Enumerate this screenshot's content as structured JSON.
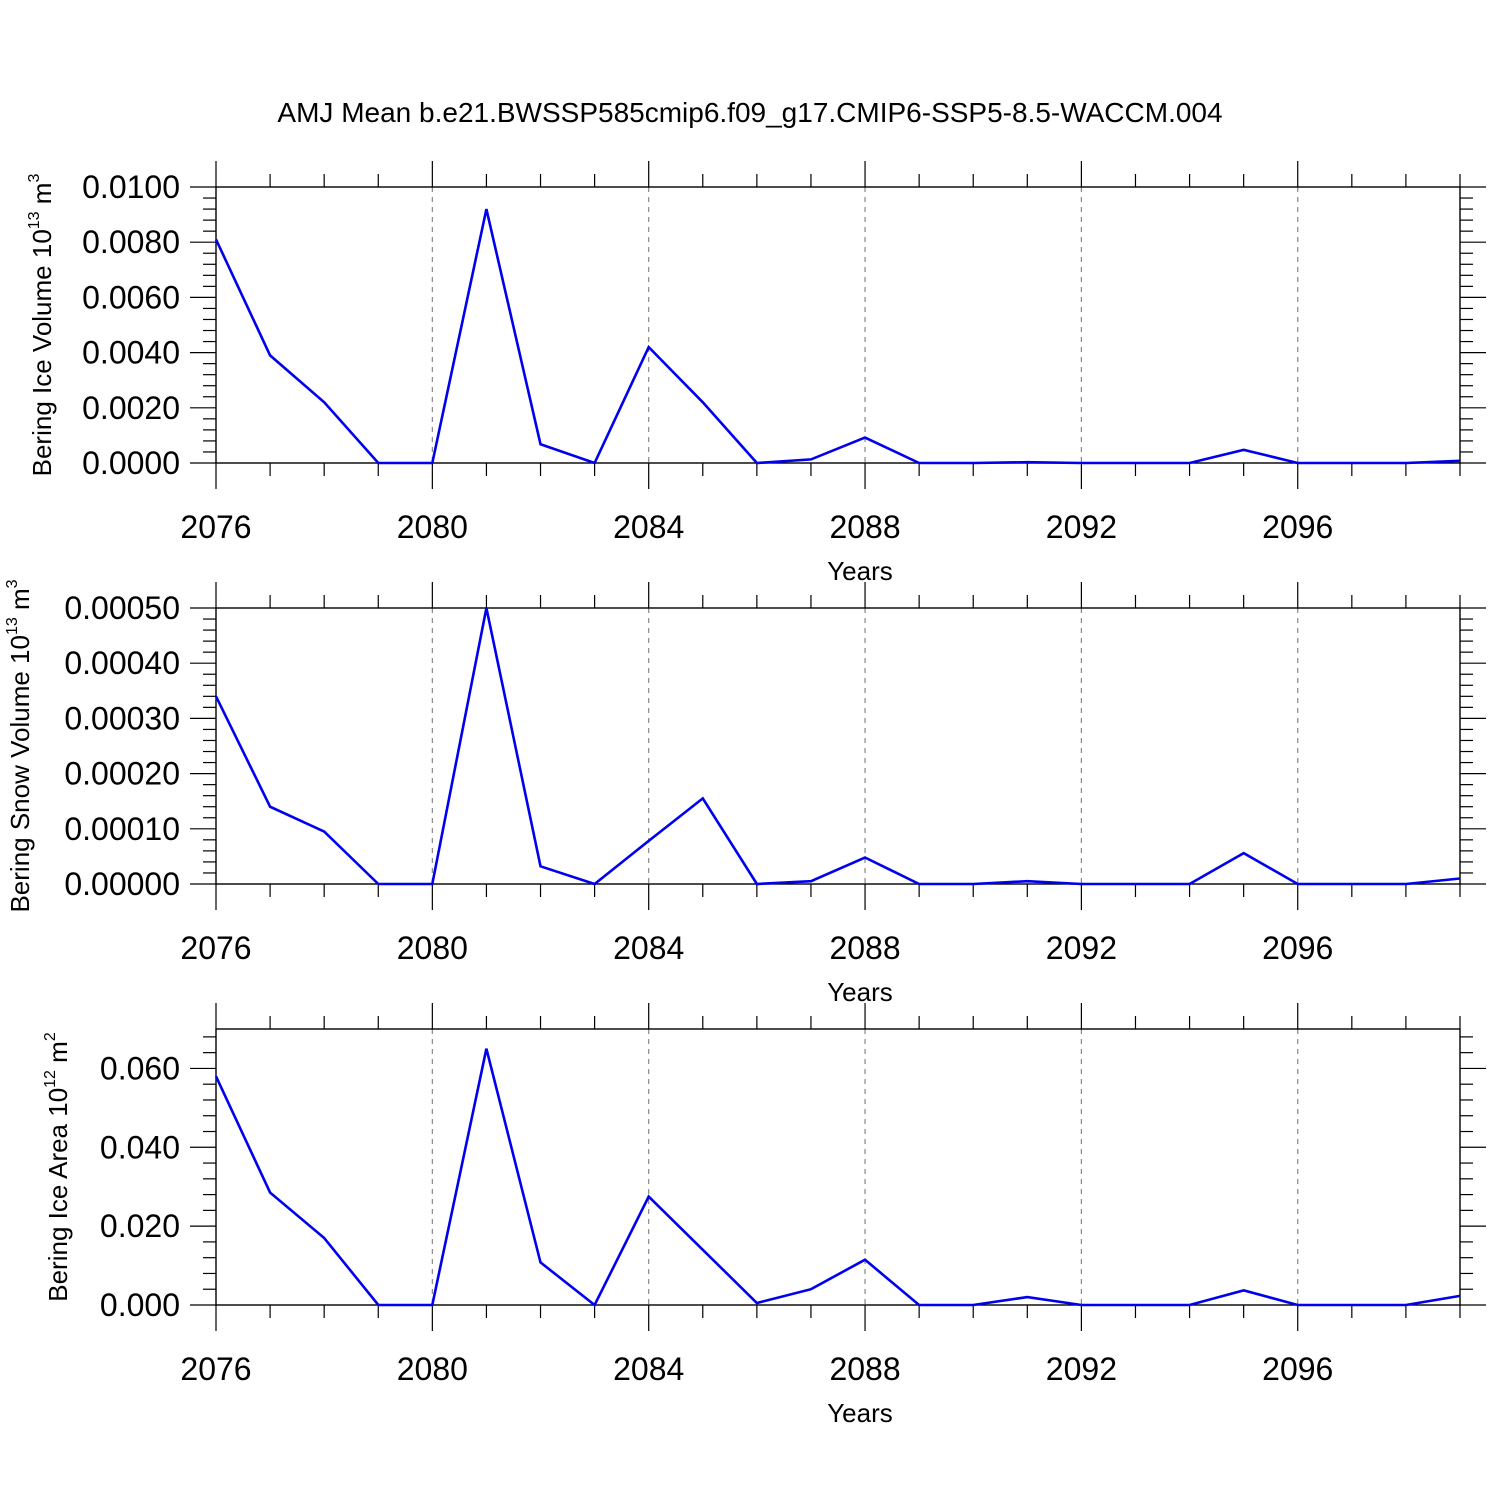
{
  "title": "AMJ Mean b.e21.BWSSP585cmip6.f09_g17.CMIP6-SSP5-8.5-WACCM.004",
  "colors": {
    "line": "#0000ee",
    "grid": "#888888",
    "frame": "#000000"
  },
  "chart_data": [
    {
      "type": "line",
      "ylabel": "Bering Ice Volume 10",
      "ylabel_exp": "13",
      "ylabel_unit": " m",
      "ylabel_unit_exp": "3",
      "xlabel": "Years",
      "xlim": [
        2076,
        2099
      ],
      "ylim": [
        0,
        0.01
      ],
      "xticks": [
        2076,
        2080,
        2084,
        2088,
        2092,
        2096
      ],
      "xtick_labels": [
        "2076",
        "2080",
        "2084",
        "2088",
        "2092",
        "2096"
      ],
      "yticks": [
        0,
        0.002,
        0.004,
        0.006,
        0.008,
        0.01
      ],
      "ytick_labels": [
        "0.0000",
        "0.0020",
        "0.0040",
        "0.0060",
        "0.0080",
        "0.0100"
      ],
      "grid": "vertical dashed at major x ticks",
      "x": [
        2076,
        2077,
        2078,
        2079,
        2080,
        2081,
        2082,
        2083,
        2084,
        2085,
        2086,
        2087,
        2088,
        2089,
        2090,
        2091,
        2092,
        2093,
        2094,
        2095,
        2096,
        2097,
        2098,
        2099
      ],
      "series": [
        {
          "values": [
            0.0081,
            0.0039,
            0.0022,
            0.0,
            0.0,
            0.0092,
            0.00068,
            0.0,
            0.0042,
            0.0022,
            0.0,
            0.00013,
            0.00092,
            0.0,
            0.0,
            3e-05,
            0.0,
            0.0,
            0.0,
            0.00048,
            0.0,
            0.0,
            0.0,
            8e-05
          ]
        }
      ]
    },
    {
      "type": "line",
      "ylabel": "Bering Snow Volume 10",
      "ylabel_exp": "13",
      "ylabel_unit": " m",
      "ylabel_unit_exp": "3",
      "xlabel": "Years",
      "xlim": [
        2076,
        2099
      ],
      "ylim": [
        0,
        0.0005
      ],
      "xticks": [
        2076,
        2080,
        2084,
        2088,
        2092,
        2096
      ],
      "xtick_labels": [
        "2076",
        "2080",
        "2084",
        "2088",
        "2092",
        "2096"
      ],
      "yticks": [
        0,
        0.0001,
        0.0002,
        0.0003,
        0.0004,
        0.0005
      ],
      "ytick_labels": [
        "0.00000",
        "0.00010",
        "0.00020",
        "0.00030",
        "0.00040",
        "0.00050"
      ],
      "grid": "vertical dashed at major x ticks",
      "x": [
        2076,
        2077,
        2078,
        2079,
        2080,
        2081,
        2082,
        2083,
        2084,
        2085,
        2086,
        2087,
        2088,
        2089,
        2090,
        2091,
        2092,
        2093,
        2094,
        2095,
        2096,
        2097,
        2098,
        2099
      ],
      "series": [
        {
          "values": [
            0.00034,
            0.00014,
            9.5e-05,
            0.0,
            0.0,
            0.0005,
            3.2e-05,
            0.0,
            7.8e-05,
            0.000155,
            0.0,
            5e-06,
            4.8e-05,
            0.0,
            0.0,
            5e-06,
            0.0,
            0.0,
            0.0,
            5.6e-05,
            0.0,
            0.0,
            0.0,
            1e-05
          ]
        }
      ]
    },
    {
      "type": "line",
      "ylabel": "Bering Ice Area 10",
      "ylabel_exp": "12",
      "ylabel_unit": " m",
      "ylabel_unit_exp": "2",
      "xlabel": "Years",
      "xlim": [
        2076,
        2099
      ],
      "ylim": [
        0,
        0.07
      ],
      "xticks": [
        2076,
        2080,
        2084,
        2088,
        2092,
        2096
      ],
      "xtick_labels": [
        "2076",
        "2080",
        "2084",
        "2088",
        "2092",
        "2096"
      ],
      "yticks": [
        0,
        0.02,
        0.04,
        0.06
      ],
      "ytick_labels": [
        "0.000",
        "0.020",
        "0.040",
        "0.060"
      ],
      "grid": "vertical dashed at major x ticks",
      "x": [
        2076,
        2077,
        2078,
        2079,
        2080,
        2081,
        2082,
        2083,
        2084,
        2085,
        2086,
        2087,
        2088,
        2089,
        2090,
        2091,
        2092,
        2093,
        2094,
        2095,
        2096,
        2097,
        2098,
        2099
      ],
      "series": [
        {
          "values": [
            0.058,
            0.0285,
            0.017,
            0.0,
            0.0,
            0.065,
            0.0108,
            0.0,
            0.0275,
            0.014,
            0.0005,
            0.004,
            0.0115,
            0.0,
            0.0,
            0.002,
            0.0,
            0.0,
            0.0,
            0.0037,
            0.0,
            0.0,
            0.0,
            0.0023
          ]
        }
      ]
    }
  ]
}
